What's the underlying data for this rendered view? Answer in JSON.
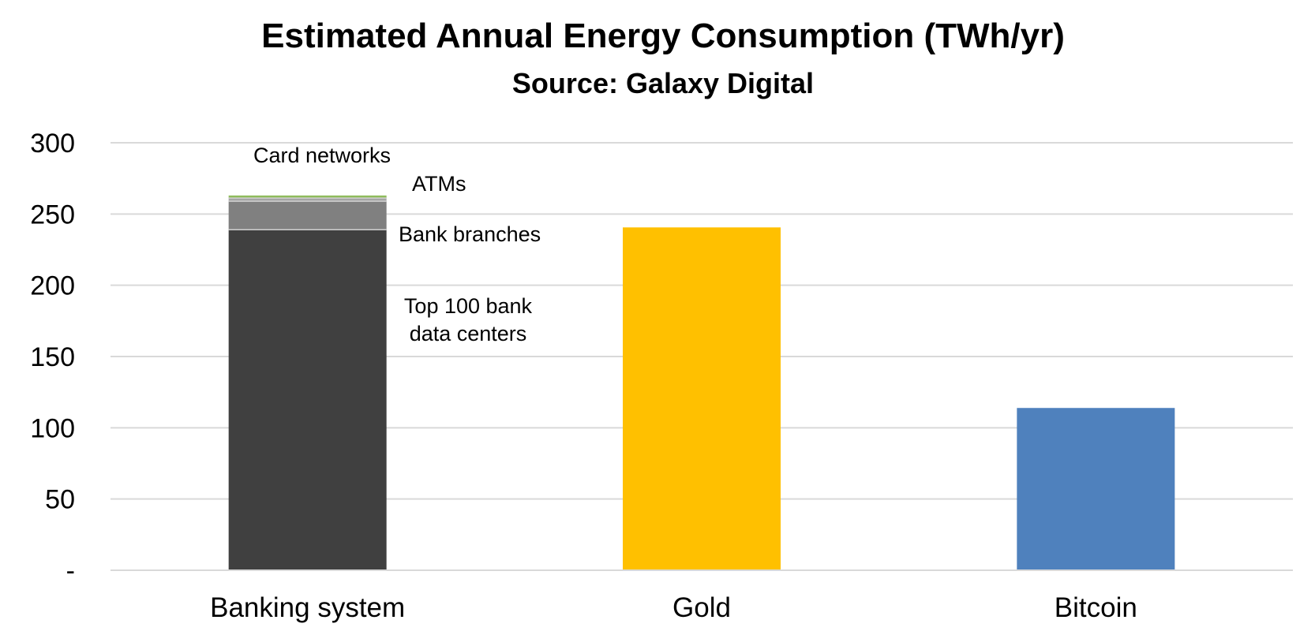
{
  "chart_data": {
    "type": "bar",
    "title": "Estimated Annual Energy Consumption (TWh/yr)",
    "subtitle": "Source: Galaxy Digital",
    "xlabel": "",
    "ylabel": "",
    "ylim": [
      0,
      300
    ],
    "yticks": [
      {
        "value": 0,
        "label": "-"
      },
      {
        "value": 50,
        "label": "50"
      },
      {
        "value": 100,
        "label": "100"
      },
      {
        "value": 150,
        "label": "150"
      },
      {
        "value": 200,
        "label": "200"
      },
      {
        "value": 250,
        "label": "250"
      },
      {
        "value": 300,
        "label": "300"
      }
    ],
    "grid": true,
    "legend": "none",
    "categories": [
      "Banking system",
      "Gold",
      "Bitcoin"
    ],
    "bars": [
      {
        "category": "Banking system",
        "segments": [
          {
            "label_lines": [
              "Top 100 bank",
              "data centers"
            ],
            "value": 239,
            "color": "#404040"
          },
          {
            "label_lines": [
              "Bank branches"
            ],
            "value": 20,
            "color": "#808080"
          },
          {
            "label_lines": [
              "ATMs"
            ],
            "value": 2.2,
            "color": "#a5a5a5"
          },
          {
            "label_lines": [
              "Card networks"
            ],
            "value": 1.8,
            "color": "#8fbc5c"
          }
        ]
      },
      {
        "category": "Gold",
        "segments": [
          {
            "label_lines": [],
            "value": 240.6,
            "color": "#ffc000"
          }
        ]
      },
      {
        "category": "Bitcoin",
        "segments": [
          {
            "label_lines": [],
            "value": 113.9,
            "color": "#4f81bd"
          }
        ]
      }
    ]
  }
}
